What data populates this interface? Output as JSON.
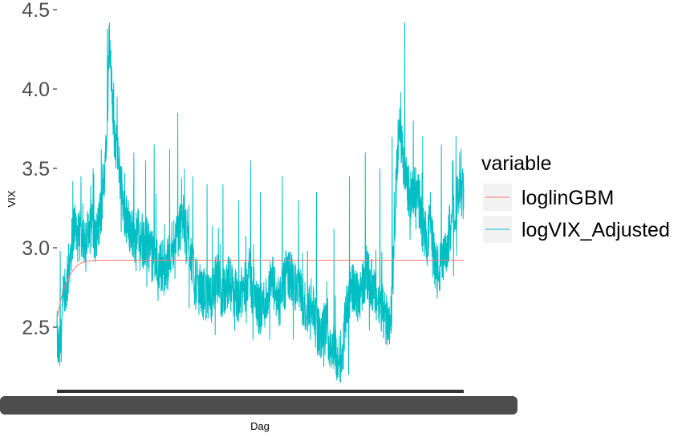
{
  "chart_data": {
    "type": "line",
    "xlabel": "Dag",
    "ylabel": "VIX",
    "y_ticks": [
      "2.5",
      "3.0",
      "3.5",
      "4.0",
      "4.5"
    ],
    "ylim": [
      2.13,
      4.5
    ],
    "xlim": [
      0,
      100
    ],
    "grid": false,
    "legend": {
      "title": "variable",
      "placement": "right"
    },
    "series": [
      {
        "name": "loglinGBM",
        "color": "#F8766D",
        "points": [
          [
            0,
            2.55
          ],
          [
            1,
            2.68
          ],
          [
            2,
            2.76
          ],
          [
            3,
            2.82
          ],
          [
            4,
            2.86
          ],
          [
            5,
            2.89
          ],
          [
            6,
            2.905
          ],
          [
            7,
            2.912
          ],
          [
            8,
            2.917
          ],
          [
            9,
            2.92
          ],
          [
            10,
            2.921
          ],
          [
            12,
            2.922
          ],
          [
            20,
            2.922
          ],
          [
            50,
            2.922
          ],
          [
            100,
            2.922
          ]
        ]
      },
      {
        "name": "logVIX_Adjusted",
        "color": "#00BFC4",
        "points": [
          [
            0,
            2.45
          ],
          [
            0.4,
            2.32
          ],
          [
            0.9,
            2.38
          ],
          [
            1.5,
            2.65
          ],
          [
            2.4,
            2.75
          ],
          [
            3.2,
            2.95
          ],
          [
            4.3,
            3.15
          ],
          [
            5.2,
            3.05
          ],
          [
            6.3,
            3.1
          ],
          [
            7.2,
            3.0
          ],
          [
            8.2,
            3.25
          ],
          [
            9.3,
            3.02
          ],
          [
            10.3,
            3.15
          ],
          [
            11.3,
            3.3
          ],
          [
            11.9,
            3.6
          ],
          [
            12.5,
            3.95
          ],
          [
            12.9,
            4.3
          ],
          [
            13.4,
            4.0
          ],
          [
            14.0,
            3.75
          ],
          [
            14.7,
            3.6
          ],
          [
            15.6,
            3.45
          ],
          [
            16.5,
            3.25
          ],
          [
            17.4,
            3.15
          ],
          [
            18.4,
            3.1
          ],
          [
            19.4,
            3.05
          ],
          [
            20.3,
            3.15
          ],
          [
            21.3,
            3.0
          ],
          [
            22.3,
            3.05
          ],
          [
            23.2,
            2.95
          ],
          [
            24.1,
            2.92
          ],
          [
            25.1,
            2.88
          ],
          [
            26.1,
            2.9
          ],
          [
            27.0,
            2.85
          ],
          [
            28.0,
            3.0
          ],
          [
            28.9,
            3.05
          ],
          [
            29.9,
            3.1
          ],
          [
            30.9,
            3.2
          ],
          [
            31.8,
            3.05
          ],
          [
            32.8,
            3.0
          ],
          [
            33.7,
            2.8
          ],
          [
            34.7,
            2.75
          ],
          [
            35.6,
            2.72
          ],
          [
            36.6,
            2.7
          ],
          [
            37.6,
            2.65
          ],
          [
            38.5,
            2.75
          ],
          [
            39.5,
            2.8
          ],
          [
            40.4,
            2.7
          ],
          [
            41.4,
            2.75
          ],
          [
            42.3,
            2.8
          ],
          [
            43.3,
            2.72
          ],
          [
            44.3,
            2.7
          ],
          [
            45.2,
            2.7
          ],
          [
            46.2,
            2.75
          ],
          [
            47.1,
            2.85
          ],
          [
            48.1,
            2.72
          ],
          [
            49.0,
            2.65
          ],
          [
            50.0,
            2.6
          ],
          [
            51.0,
            2.65
          ],
          [
            51.9,
            2.7
          ],
          [
            52.9,
            2.8
          ],
          [
            53.8,
            2.7
          ],
          [
            54.8,
            2.65
          ],
          [
            55.8,
            2.75
          ],
          [
            56.7,
            2.85
          ],
          [
            57.7,
            2.8
          ],
          [
            58.6,
            2.75
          ],
          [
            59.6,
            2.72
          ],
          [
            60.6,
            2.65
          ],
          [
            61.5,
            2.6
          ],
          [
            62.5,
            2.7
          ],
          [
            63.4,
            2.55
          ],
          [
            64.4,
            2.45
          ],
          [
            65.3,
            2.45
          ],
          [
            66.3,
            2.5
          ],
          [
            67.2,
            2.4
          ],
          [
            68.2,
            2.35
          ],
          [
            69.1,
            2.3
          ],
          [
            70.1,
            2.32
          ],
          [
            71.0,
            2.6
          ],
          [
            72.0,
            2.7
          ],
          [
            73.0,
            2.75
          ],
          [
            74.0,
            2.7
          ],
          [
            75.0,
            2.75
          ],
          [
            76.0,
            2.85
          ],
          [
            77.0,
            2.8
          ],
          [
            78.0,
            2.7
          ],
          [
            78.9,
            2.65
          ],
          [
            79.9,
            2.6
          ],
          [
            80.9,
            2.55
          ],
          [
            81.8,
            2.55
          ],
          [
            82.4,
            2.65
          ],
          [
            82.9,
            3.0
          ],
          [
            83.5,
            3.5
          ],
          [
            84.1,
            3.75
          ],
          [
            84.6,
            3.7
          ],
          [
            85.2,
            3.5
          ],
          [
            86.2,
            3.4
          ],
          [
            87.1,
            3.3
          ],
          [
            88.1,
            3.35
          ],
          [
            89.0,
            3.3
          ],
          [
            90.0,
            3.1
          ],
          [
            91.0,
            3.05
          ],
          [
            91.9,
            3.2
          ],
          [
            92.9,
            2.9
          ],
          [
            93.8,
            2.85
          ],
          [
            94.8,
            2.9
          ],
          [
            95.8,
            2.95
          ],
          [
            96.7,
            3.15
          ],
          [
            97.7,
            3.25
          ],
          [
            98.6,
            3.3
          ],
          [
            99.5,
            3.35
          ],
          [
            100,
            3.3
          ]
        ],
        "peaks": [
          [
            0.8,
            2.98
          ],
          [
            3.9,
            3.42
          ],
          [
            5.9,
            3.45
          ],
          [
            8.9,
            3.5
          ],
          [
            10.9,
            3.62
          ],
          [
            12.4,
            4.38
          ],
          [
            12.8,
            4.4
          ],
          [
            14.8,
            3.95
          ],
          [
            18.9,
            3.6
          ],
          [
            21.8,
            3.55
          ],
          [
            23.9,
            3.65
          ],
          [
            27.7,
            3.62
          ],
          [
            29.7,
            3.85
          ],
          [
            33.4,
            3.45
          ],
          [
            36.9,
            3.4
          ],
          [
            40.8,
            3.4
          ],
          [
            44.7,
            3.3
          ],
          [
            47.6,
            3.55
          ],
          [
            50.0,
            3.35
          ],
          [
            55.4,
            3.45
          ],
          [
            59.4,
            3.3
          ],
          [
            63.8,
            3.35
          ],
          [
            68.1,
            3.12
          ],
          [
            71.9,
            3.45
          ],
          [
            75.8,
            3.6
          ],
          [
            79.4,
            3.5
          ],
          [
            82.4,
            3.7
          ],
          [
            85.5,
            4.42
          ],
          [
            87.6,
            3.8
          ],
          [
            89.9,
            3.7
          ],
          [
            94.5,
            3.65
          ],
          [
            99.0,
            3.6
          ]
        ],
        "troughs": [
          [
            0.4,
            2.28
          ],
          [
            2.0,
            2.6
          ],
          [
            7.1,
            2.85
          ],
          [
            15.8,
            3.1
          ],
          [
            22.1,
            2.75
          ],
          [
            26.3,
            2.7
          ],
          [
            32.5,
            2.62
          ],
          [
            38.9,
            2.45
          ],
          [
            43.7,
            2.48
          ],
          [
            48.2,
            2.42
          ],
          [
            52.3,
            2.42
          ],
          [
            58.1,
            2.42
          ],
          [
            62.3,
            2.42
          ],
          [
            65.6,
            2.25
          ],
          [
            70.0,
            2.22
          ],
          [
            71.7,
            2.2
          ],
          [
            76.8,
            2.48
          ],
          [
            81.4,
            2.45
          ],
          [
            86.8,
            3.05
          ],
          [
            93.5,
            2.68
          ],
          [
            97.5,
            2.82
          ]
        ]
      }
    ]
  }
}
